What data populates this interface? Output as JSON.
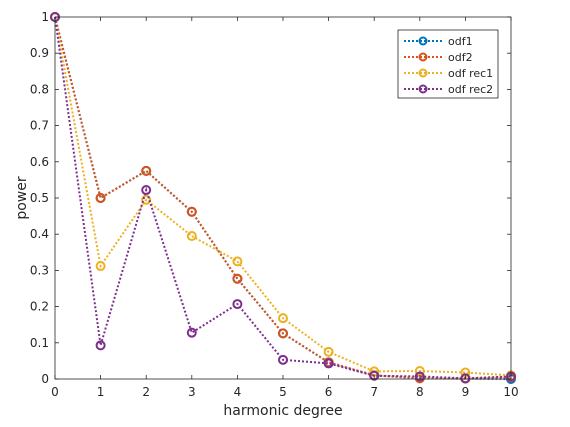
{
  "chart_data": {
    "type": "line",
    "xlabel": "harmonic degree",
    "ylabel": "power",
    "xlim": [
      0,
      10
    ],
    "ylim": [
      0,
      1
    ],
    "x": [
      0,
      1,
      2,
      3,
      4,
      5,
      6,
      7,
      8,
      9,
      10
    ],
    "xticks": [
      "0",
      "1",
      "2",
      "3",
      "4",
      "5",
      "6",
      "7",
      "8",
      "9",
      "10"
    ],
    "yticks": [
      "0",
      "0.1",
      "0.2",
      "0.3",
      "0.4",
      "0.5",
      "0.6",
      "0.7",
      "0.8",
      "0.9",
      "1"
    ],
    "grid": false,
    "legend_position": "top-right",
    "series": [
      {
        "name": "odf1",
        "color": "#0072BD",
        "values": [
          1.0,
          0.5,
          0.575,
          0.462,
          0.277,
          0.126,
          0.046,
          0.01,
          0.002,
          0.001,
          0.0
        ]
      },
      {
        "name": "odf2",
        "color": "#D95319",
        "values": [
          1.0,
          0.5,
          0.575,
          0.462,
          0.277,
          0.126,
          0.046,
          0.01,
          0.002,
          0.001,
          0.005
        ]
      },
      {
        "name": "odf rec1",
        "color": "#EDB120",
        "values": [
          1.0,
          0.312,
          0.495,
          0.395,
          0.325,
          0.168,
          0.075,
          0.021,
          0.022,
          0.018,
          0.01
        ]
      },
      {
        "name": "odf rec2",
        "color": "#7E2F8E",
        "values": [
          1.0,
          0.093,
          0.522,
          0.128,
          0.207,
          0.053,
          0.043,
          0.009,
          0.007,
          0.002,
          0.007
        ]
      }
    ]
  }
}
